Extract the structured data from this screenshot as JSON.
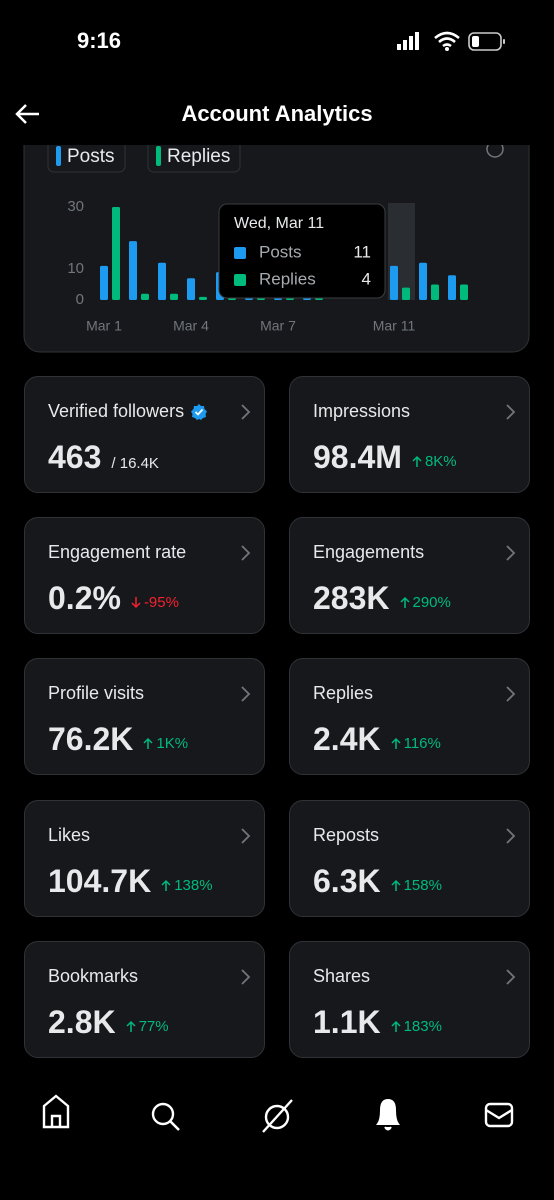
{
  "status_bar": {
    "time": "9:16"
  },
  "header": {
    "title": "Account Analytics"
  },
  "chart_data": {
    "type": "bar",
    "categories": [
      "Mar 1",
      null,
      null,
      "Mar 4",
      null,
      null,
      "Mar 7",
      null,
      null,
      null,
      "Mar 11",
      null,
      null
    ],
    "series": [
      {
        "name": "Posts",
        "color": "#1d9bf0",
        "values": [
          11,
          19,
          12,
          7,
          9,
          3,
          2,
          1,
          0,
          0,
          11,
          12,
          8
        ]
      },
      {
        "name": "Replies",
        "color": "#00ba7c",
        "values": [
          30,
          2,
          2,
          1,
          1,
          1,
          1,
          1,
          0,
          0,
          4,
          5,
          5
        ]
      }
    ],
    "ylim": [
      0,
      30
    ],
    "yticks": [
      0,
      10,
      30
    ],
    "tooltip": {
      "title": "Wed, Mar 11"
    }
  },
  "cards": [
    {
      "label": "Verified followers",
      "value": "463",
      "total": "/ 16.4K",
      "verified": true
    },
    {
      "label": "Impressions",
      "value": "98.4M",
      "change": "8K%",
      "direction": "up"
    },
    {
      "label": "Engagement rate",
      "value": "0.2%",
      "change": "-95%",
      "direction": "down"
    },
    {
      "label": "Engagements",
      "value": "283K",
      "change": "290%",
      "direction": "up"
    },
    {
      "label": "Profile visits",
      "value": "76.2K",
      "change": "1K%",
      "direction": "up"
    },
    {
      "label": "Replies",
      "value": "2.4K",
      "change": "116%",
      "direction": "up"
    },
    {
      "label": "Likes",
      "value": "104.7K",
      "change": "138%",
      "direction": "up"
    },
    {
      "label": "Reposts",
      "value": "6.3K",
      "change": "158%",
      "direction": "up"
    },
    {
      "label": "Bookmarks",
      "value": "2.8K",
      "change": "77%",
      "direction": "up"
    },
    {
      "label": "Shares",
      "value": "1.1K",
      "change": "183%",
      "direction": "up"
    }
  ]
}
